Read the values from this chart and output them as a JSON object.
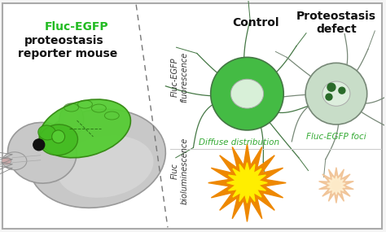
{
  "background_color": "#f5f5f5",
  "border_color": "#aaaaaa",
  "left_title_line1": "Fluc-EGFP",
  "left_title_line2": "proteostasis",
  "left_title_line3": "reporter mouse",
  "left_title_color": "#22bb22",
  "left_title_color2": "#111111",
  "col1_header": "Control",
  "col2_header": "Proteostasis\ndefect",
  "row1_label": "Fluc-EGFP\nfluorescence",
  "row2_label": "Fluc\nbioluminescence",
  "label_color": "#333333",
  "control_caption": "Diffuse distribution",
  "defect_caption": "Fluc-EGFP foci",
  "caption_color": "#33aa33",
  "neuron_control_body": "#44bb44",
  "neuron_control_nucleus": "#d8f0d8",
  "neuron_defect_body": "#c8ddc8",
  "neuron_defect_nucleus": "#ddeedd",
  "neuron_defect_foci": "#2a6b2a",
  "burst_control_outer": "#ee8800",
  "burst_control_inner": "#ffee00",
  "burst_defect_outer": "#f0c090",
  "burst_defect_inner": "#fff0d0",
  "dashed_line_color": "#777777",
  "mouse_body_color": "#c0c0c0",
  "mouse_body_dark": "#888888",
  "mouse_head_color": "#c8c8c8",
  "brain_color": "#55cc33",
  "brain_edge": "#338811",
  "brain2_color": "#44bb22",
  "whisker_color": "#888888",
  "header_fontsize": 10,
  "label_fontsize": 7,
  "caption_fontsize": 7.5
}
